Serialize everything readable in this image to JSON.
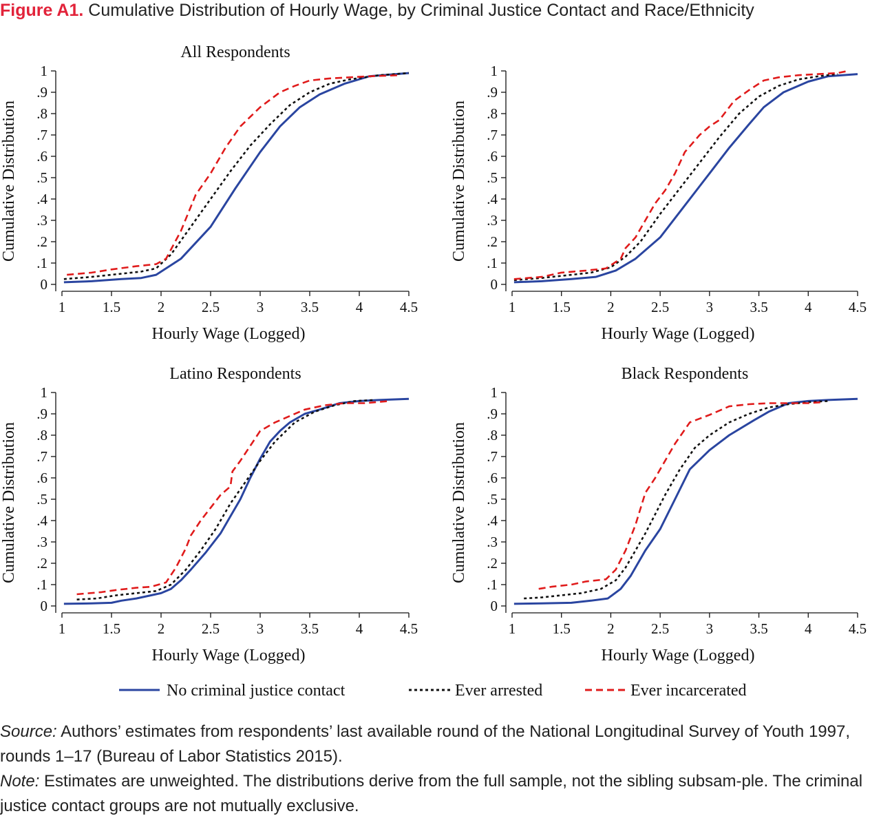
{
  "figure": {
    "label": "Figure A1.",
    "title": "Cumulative Distribution of Hourly Wage, by Criminal Justice Contact and Race/Ethnicity"
  },
  "notes": {
    "source_label": "Source:",
    "source_text": "Authors’ estimates from respondents’ last available round of the National Longitudinal Survey of Youth 1997, rounds 1–17 (Bureau of Labor Statistics 2015).",
    "note_label": "Note:",
    "note_text": "Estimates are unweighted. The distributions derive from the full sample, not the sibling subsam-ple. The criminal justice contact groups are not mutually exclusive."
  },
  "colors": {
    "no_contact": "#2a45a0",
    "arrested": "#111111",
    "incarcerated": "#e01b1b"
  },
  "legend": [
    {
      "key": "no_contact",
      "label": "No criminal justice contact",
      "dash": "solid"
    },
    {
      "key": "arrested",
      "label": "Ever arrested",
      "dash": "dotted"
    },
    {
      "key": "incarcerated",
      "label": "Ever incarcerated",
      "dash": "dashed"
    }
  ],
  "chart_data": [
    {
      "type": "line",
      "title": "All Respondents",
      "xlabel": "Hourly Wage (Logged)",
      "ylabel": "Cumulative Distribution",
      "xlim": [
        1,
        4.5
      ],
      "ylim": [
        0,
        1
      ],
      "xticks": [
        "1",
        "1.5",
        "2",
        "2.5",
        "3",
        "3.5",
        "4",
        "4.5"
      ],
      "yticks": [
        "0",
        ".1",
        ".2",
        ".3",
        ".4",
        ".5",
        ".6",
        ".7",
        ".8",
        ".9",
        "1"
      ],
      "series": [
        {
          "name": "No criminal justice contact",
          "x": [
            1.02,
            1.3,
            1.6,
            1.8,
            1.95,
            2.2,
            2.5,
            2.75,
            3.0,
            3.2,
            3.4,
            3.6,
            3.85,
            4.1,
            4.5
          ],
          "y": [
            0.01,
            0.015,
            0.025,
            0.03,
            0.045,
            0.12,
            0.27,
            0.45,
            0.62,
            0.74,
            0.83,
            0.89,
            0.94,
            0.975,
            0.99
          ]
        },
        {
          "name": "Ever arrested",
          "x": [
            1.02,
            1.3,
            1.6,
            1.8,
            1.95,
            2.1,
            2.3,
            2.5,
            2.7,
            2.9,
            3.1,
            3.3,
            3.5,
            3.7,
            3.9,
            4.2,
            4.5
          ],
          "y": [
            0.025,
            0.035,
            0.05,
            0.06,
            0.075,
            0.14,
            0.27,
            0.4,
            0.53,
            0.65,
            0.75,
            0.84,
            0.9,
            0.94,
            0.96,
            0.98,
            0.99
          ]
        },
        {
          "name": "Ever incarcerated",
          "x": [
            1.05,
            1.3,
            1.5,
            1.75,
            1.85,
            1.95,
            2.05,
            2.2,
            2.35,
            2.5,
            2.65,
            2.8,
            3.0,
            3.2,
            3.35,
            3.5,
            3.7,
            3.9,
            4.1,
            4.4
          ],
          "y": [
            0.045,
            0.055,
            0.07,
            0.085,
            0.09,
            0.095,
            0.12,
            0.25,
            0.42,
            0.52,
            0.64,
            0.74,
            0.83,
            0.9,
            0.93,
            0.955,
            0.965,
            0.97,
            0.975,
            0.98
          ]
        }
      ]
    },
    {
      "type": "line",
      "title": "",
      "xlabel": "Hourly Wage (Logged)",
      "ylabel": "Cumulative Distribution",
      "xlim": [
        1,
        4.5
      ],
      "ylim": [
        0,
        1
      ],
      "xticks": [
        "1",
        "1.5",
        "2",
        "2.5",
        "3",
        "3.5",
        "4",
        "4.5"
      ],
      "yticks": [
        "0",
        ".1",
        ".2",
        ".3",
        ".4",
        ".5",
        ".6",
        ".7",
        ".8",
        ".9",
        "1"
      ],
      "series": [
        {
          "name": "No criminal justice contact",
          "x": [
            1.02,
            1.3,
            1.6,
            1.85,
            2.05,
            2.25,
            2.5,
            2.75,
            3.0,
            3.2,
            3.4,
            3.55,
            3.75,
            4.0,
            4.2,
            4.5
          ],
          "y": [
            0.01,
            0.015,
            0.025,
            0.035,
            0.065,
            0.12,
            0.22,
            0.37,
            0.52,
            0.64,
            0.75,
            0.83,
            0.9,
            0.95,
            0.975,
            0.985
          ]
        },
        {
          "name": "Ever arrested",
          "x": [
            1.02,
            1.3,
            1.6,
            1.8,
            2.0,
            2.15,
            2.3,
            2.5,
            2.7,
            2.9,
            3.1,
            3.3,
            3.5,
            3.7,
            3.9,
            4.1,
            4.3
          ],
          "y": [
            0.02,
            0.03,
            0.045,
            0.055,
            0.08,
            0.13,
            0.2,
            0.33,
            0.45,
            0.57,
            0.69,
            0.8,
            0.88,
            0.93,
            0.96,
            0.975,
            0.985
          ]
        },
        {
          "name": "Ever incarcerated",
          "x": [
            1.02,
            1.3,
            1.5,
            1.75,
            1.95,
            2.1,
            2.15,
            2.25,
            2.35,
            2.45,
            2.55,
            2.65,
            2.75,
            2.9,
            3.0,
            3.1,
            3.25,
            3.4,
            3.55,
            3.7,
            3.9,
            4.1,
            4.3,
            4.4
          ],
          "y": [
            0.025,
            0.035,
            0.055,
            0.065,
            0.075,
            0.12,
            0.17,
            0.22,
            0.3,
            0.38,
            0.44,
            0.52,
            0.62,
            0.7,
            0.74,
            0.77,
            0.86,
            0.91,
            0.955,
            0.97,
            0.98,
            0.985,
            0.99,
            1.0
          ]
        }
      ]
    },
    {
      "type": "line",
      "title": "Latino Respondents",
      "xlabel": "Hourly Wage (Logged)",
      "ylabel": "Cumulative Distribution",
      "xlim": [
        1,
        4.5
      ],
      "ylim": [
        0,
        1
      ],
      "xticks": [
        "1",
        "1.5",
        "2",
        "2.5",
        "3",
        "3.5",
        "4",
        "4.5"
      ],
      "yticks": [
        "0",
        ".1",
        ".2",
        ".3",
        ".4",
        ".5",
        ".6",
        ".7",
        ".8",
        ".9",
        "1"
      ],
      "series": [
        {
          "name": "No criminal justice contact",
          "x": [
            1.02,
            1.3,
            1.5,
            1.6,
            1.75,
            1.9,
            2.0,
            2.1,
            2.2,
            2.3,
            2.45,
            2.6,
            2.7,
            2.8,
            2.9,
            3.0,
            3.1,
            3.2,
            3.3,
            3.45,
            3.6,
            3.8,
            4.0,
            4.2,
            4.5
          ],
          "y": [
            0.01,
            0.012,
            0.015,
            0.025,
            0.035,
            0.05,
            0.06,
            0.08,
            0.12,
            0.17,
            0.25,
            0.34,
            0.42,
            0.5,
            0.6,
            0.69,
            0.77,
            0.82,
            0.86,
            0.9,
            0.92,
            0.95,
            0.96,
            0.965,
            0.97
          ]
        },
        {
          "name": "Ever arrested",
          "x": [
            1.15,
            1.35,
            1.55,
            1.75,
            1.95,
            2.1,
            2.25,
            2.4,
            2.55,
            2.7,
            2.85,
            3.0,
            3.15,
            3.35,
            3.55,
            3.75,
            3.95,
            4.15
          ],
          "y": [
            0.03,
            0.035,
            0.05,
            0.06,
            0.07,
            0.1,
            0.17,
            0.26,
            0.36,
            0.48,
            0.58,
            0.68,
            0.77,
            0.86,
            0.91,
            0.94,
            0.96,
            0.965
          ]
        },
        {
          "name": "Ever incarcerated",
          "x": [
            1.15,
            1.4,
            1.55,
            1.75,
            1.9,
            2.05,
            2.15,
            2.25,
            2.3,
            2.4,
            2.5,
            2.6,
            2.7,
            2.72,
            2.8,
            2.9,
            3.0,
            3.15,
            3.3,
            3.45,
            3.65,
            3.85,
            4.05,
            4.3
          ],
          "y": [
            0.055,
            0.065,
            0.075,
            0.085,
            0.09,
            0.11,
            0.18,
            0.27,
            0.33,
            0.4,
            0.46,
            0.52,
            0.56,
            0.63,
            0.68,
            0.75,
            0.82,
            0.86,
            0.89,
            0.92,
            0.94,
            0.95,
            0.95,
            0.96
          ]
        }
      ]
    },
    {
      "type": "line",
      "title": "Black Respondents",
      "xlabel": "Hourly Wage (Logged)",
      "ylabel": "Cumulative Distribution",
      "xlim": [
        1,
        4.5
      ],
      "ylim": [
        0,
        1
      ],
      "xticks": [
        "1",
        "1.5",
        "2",
        "2.5",
        "3",
        "3.5",
        "4",
        "4.5"
      ],
      "yticks": [
        "0",
        ".1",
        ".2",
        ".3",
        ".4",
        ".5",
        ".6",
        ".7",
        ".8",
        ".9",
        "1"
      ],
      "series": [
        {
          "name": "No criminal justice contact",
          "x": [
            1.02,
            1.3,
            1.6,
            1.8,
            1.97,
            2.1,
            2.2,
            2.35,
            2.5,
            2.65,
            2.8,
            3.0,
            3.2,
            3.45,
            3.6,
            3.8,
            4.0,
            4.2,
            4.5
          ],
          "y": [
            0.01,
            0.012,
            0.015,
            0.025,
            0.035,
            0.08,
            0.14,
            0.26,
            0.36,
            0.5,
            0.64,
            0.73,
            0.8,
            0.87,
            0.91,
            0.95,
            0.96,
            0.965,
            0.97
          ]
        },
        {
          "name": "Ever arrested",
          "x": [
            1.12,
            1.3,
            1.5,
            1.7,
            1.9,
            2.05,
            2.15,
            2.25,
            2.35,
            2.45,
            2.55,
            2.7,
            2.85,
            3.0,
            3.2,
            3.4,
            3.6,
            3.8,
            4.0,
            4.2
          ],
          "y": [
            0.035,
            0.04,
            0.05,
            0.06,
            0.08,
            0.12,
            0.18,
            0.26,
            0.34,
            0.43,
            0.52,
            0.64,
            0.74,
            0.8,
            0.86,
            0.9,
            0.93,
            0.945,
            0.955,
            0.96
          ]
        },
        {
          "name": "Ever incarcerated",
          "x": [
            1.27,
            1.4,
            1.6,
            1.75,
            1.95,
            2.05,
            2.15,
            2.25,
            2.35,
            2.45,
            2.55,
            2.65,
            2.8,
            3.0,
            3.2,
            3.4,
            3.6,
            3.8,
            4.0,
            4.15
          ],
          "y": [
            0.08,
            0.09,
            0.1,
            0.115,
            0.125,
            0.17,
            0.26,
            0.38,
            0.53,
            0.6,
            0.68,
            0.76,
            0.86,
            0.895,
            0.935,
            0.945,
            0.95,
            0.95,
            0.95,
            0.955
          ]
        }
      ]
    }
  ]
}
